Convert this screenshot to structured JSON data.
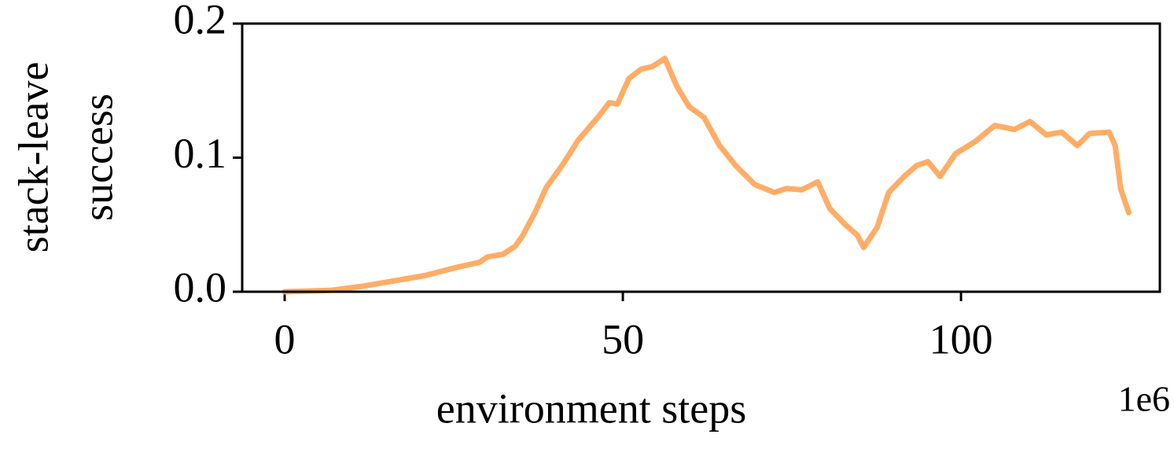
{
  "chart_data": {
    "type": "line",
    "xlabel": "environment steps",
    "x_offset_label": "1e6",
    "ylabel": [
      "stack-leave",
      "success"
    ],
    "x": [
      0,
      6.7,
      11.4,
      16,
      20.7,
      25.3,
      28.8,
      30,
      32.3,
      34.1,
      35.2,
      37,
      38.7,
      41,
      43.4,
      46.3,
      48,
      49.2,
      50.9,
      52.7,
      54.4,
      56.2,
      58,
      59.8,
      62,
      64.3,
      66.7,
      69.5,
      72.4,
      74.2,
      76.5,
      78.8,
      80.6,
      82.9,
      84.7,
      85.6,
      87.6,
      89.3,
      91.6,
      93.4,
      95.1,
      96.9,
      99.2,
      102.1,
      105,
      107.9,
      110.2,
      112.6,
      114.9,
      117.2,
      119,
      121.9,
      122.8,
      123.6,
      124.8
    ],
    "series": [
      {
        "color": "#ffad66",
        "values": [
          0,
          0.001,
          0.004,
          0.008,
          0.012,
          0.018,
          0.022,
          0.026,
          0.028,
          0.034,
          0.042,
          0.059,
          0.078,
          0.094,
          0.113,
          0.13,
          0.141,
          0.14,
          0.159,
          0.166,
          0.168,
          0.174,
          0.153,
          0.138,
          0.13,
          0.109,
          0.094,
          0.08,
          0.074,
          0.077,
          0.076,
          0.082,
          0.062,
          0.05,
          0.042,
          0.033,
          0.048,
          0.074,
          0.086,
          0.094,
          0.097,
          0.086,
          0.103,
          0.112,
          0.124,
          0.121,
          0.127,
          0.117,
          0.119,
          0.109,
          0.118,
          0.119,
          0.109,
          0.077,
          0.059
        ]
      }
    ],
    "xlim": [
      -6.28,
      129.4
    ],
    "xticks": [
      0,
      50,
      100
    ],
    "ylim": [
      0,
      0.2
    ],
    "yticks": [
      {
        "value": 0,
        "label": "0.0"
      },
      0.1,
      0.2
    ],
    "grid": false
  }
}
